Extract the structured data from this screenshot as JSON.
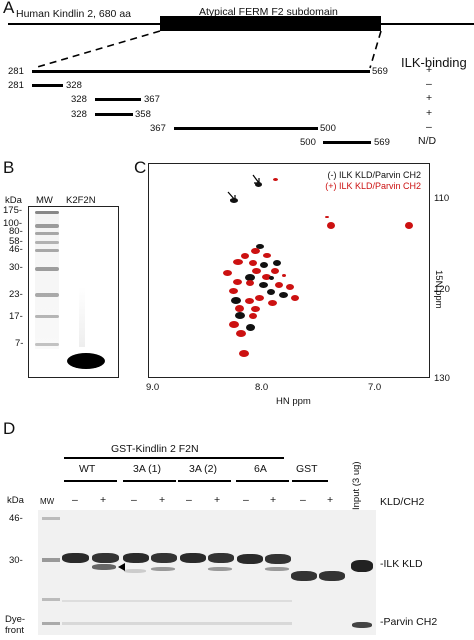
{
  "panelA": {
    "letter": "A",
    "protein_label": "Human Kindlin 2, 680 aa",
    "domain_label": "Atypical FERM F2 subdomain",
    "column_header": "ILK-binding",
    "constructs": [
      {
        "start": "281",
        "end": "569",
        "result": "+"
      },
      {
        "start": "281",
        "end": "328",
        "result": "–"
      },
      {
        "start": "328",
        "end": "367",
        "result": "+"
      },
      {
        "start": "328",
        "end": "358",
        "result": "+"
      },
      {
        "start": "367",
        "end": "500",
        "result": "–"
      },
      {
        "start": "500",
        "end": "569",
        "result": "N/D"
      }
    ]
  },
  "panelB": {
    "letter": "B",
    "kda_label": "kDa",
    "lane_labels": [
      "MW",
      "K2F2N"
    ],
    "markers": [
      "175-",
      "100-",
      "80-",
      "58-",
      "46-",
      "30-",
      "23-",
      "17-",
      "7-"
    ]
  },
  "panelC": {
    "letter": "C",
    "legend": [
      "(-) ILK KLD/Parvin CH2",
      "(+) ILK KLD/Parvin CH2"
    ],
    "colors": {
      "minus": "#111111",
      "plus": "#cc1111"
    },
    "x_axis_label": "HN ppm",
    "y_axis_label": "15N ppm",
    "x_ticks": [
      "9.0",
      "8.0",
      "7.0"
    ],
    "y_ticks": [
      "110",
      "120",
      "130"
    ]
  },
  "panelD": {
    "letter": "D",
    "group_title": "GST-Kindlin 2 F2N",
    "input_label": "Input (3 ug)",
    "kda_label": "kDa",
    "mw_label": "MW",
    "groups": [
      "WT",
      "3A (1)",
      "3A (2)",
      "6A",
      "GST"
    ],
    "signs": [
      "–",
      "+",
      "–",
      "+",
      "–",
      "+",
      "–",
      "+",
      "–",
      "+"
    ],
    "condition_label": "KLD/CH2",
    "markers": [
      "46-",
      "30-"
    ],
    "dye_front": "Dye-\nfront",
    "band_labels": [
      "-ILK KLD",
      "-Parvin CH2"
    ]
  }
}
